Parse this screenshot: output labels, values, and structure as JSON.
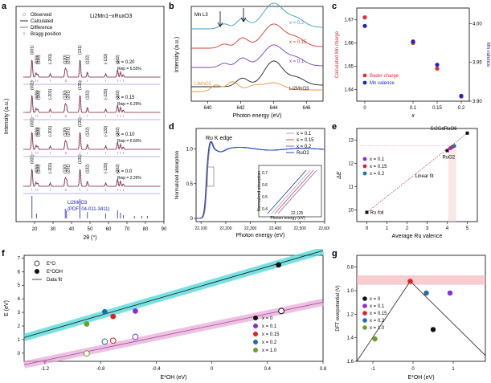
{
  "figure": {
    "panel_labels": [
      "a",
      "b",
      "c",
      "d",
      "e",
      "f",
      "g"
    ]
  },
  "chart_data": [
    {
      "panel": "a",
      "type": "line",
      "title": "Li2Mn1−xRuxO3",
      "xlabel": "2θ (°)",
      "ylabel": "Intensity (a.u.)",
      "xlim": [
        10,
        90
      ],
      "xticks": [
        20,
        30,
        40,
        50,
        60,
        70,
        80,
        90
      ],
      "legend": [
        "Observed",
        "Calculated",
        "Difference",
        "Bragg position"
      ],
      "colors": {
        "observed": "#f06fae",
        "calculated": "#3f2d2d",
        "difference": "#6b6bd6",
        "bragg": "#b07ad8"
      },
      "series": [
        {
          "x": "x = 0.20",
          "rwp": "Rwp = 6.55%",
          "peaks": [
            "(001)",
            "(020)",
            "(110)",
            "(-201)",
            "(130)",
            "(201)",
            "(131)",
            "(132)",
            "(-133)",
            "(202)"
          ]
        },
        {
          "x": "x = 0.15",
          "rwp": "Rwp = 6.29%",
          "peaks": [
            "(001)",
            "(020)",
            "(110)",
            "(-201)",
            "(130)",
            "(201)",
            "(131)",
            "(132)",
            "(-133)",
            "(202)"
          ]
        },
        {
          "x": "x = 0.10",
          "rwp": "Rwp = 6.60%",
          "peaks": [
            "(001)",
            "(020)",
            "(110)",
            "(-201)",
            "(130)",
            "(201)",
            "(131)",
            "(132)",
            "(-133)",
            "(202)"
          ]
        },
        {
          "x": "x = 0.0",
          "rwp": "Rwp = 2.26%",
          "peaks": [
            "(001)",
            "(020)",
            "(110)",
            "(-201)",
            "(130)",
            "(201)",
            "(131)",
            "(132)",
            "(-133)",
            "(202)"
          ]
        }
      ],
      "reference": {
        "name": "Li2MnO3",
        "pdf": "(PDF: 04-011-3411)"
      }
    },
    {
      "panel": "b",
      "type": "line",
      "title": "Mn L3",
      "xlabel": "Photon energy (eV)",
      "ylabel": "Intensity (a.u.)",
      "xlim": [
        639,
        647
      ],
      "xticks": [
        640,
        642,
        644,
        646
      ],
      "series": [
        {
          "name": "x = 0.2",
          "color": "#3b9cc4"
        },
        {
          "name": "x = 0.15",
          "color": "#d9342b"
        },
        {
          "name": "x = 0.1",
          "color": "#7b3ab0"
        },
        {
          "name": "Li2MnO3",
          "color": "#222222"
        },
        {
          "name": "LiMnO2",
          "color": "#e8943a"
        }
      ]
    },
    {
      "panel": "c",
      "type": "scatter",
      "xlabel": "x",
      "ylabel_left": "Calculated Mn charge",
      "ylabel_right": "Mn valence",
      "xlim": [
        0,
        0.2
      ],
      "xticks": [
        "0",
        "0.1",
        "0.15",
        "0.2"
      ],
      "ylim_left": [
        1.635,
        1.675
      ],
      "yticks_left": [
        "1.64",
        "1.65",
        "1.66",
        "1.67"
      ],
      "ylim_right": [
        3.9,
        4.02
      ],
      "yticks_right": [
        "3.90",
        "3.95",
        "4.00"
      ],
      "legend": [
        "Bader charge",
        "Mn valence"
      ],
      "series": [
        {
          "name": "Bader charge",
          "color": "#e03030",
          "x": [
            0,
            0.1,
            0.15,
            0.2
          ],
          "y": [
            1.671,
            1.66,
            1.649,
            1.637
          ]
        },
        {
          "name": "Mn valence",
          "color": "#2020d0",
          "x": [
            0,
            0.1,
            0.15,
            0.2
          ],
          "y": [
            4.0,
            3.98,
            3.95,
            3.91
          ]
        }
      ]
    },
    {
      "panel": "d",
      "type": "line",
      "title": "Ru K edge",
      "xlabel": "Photon energy (eV)",
      "ylabel": "Normalized absorption",
      "xlim": [
        22080,
        22600
      ],
      "xticks": [
        "22,100",
        "22,200",
        "22,300",
        "22,400",
        "22,500",
        "22,600"
      ],
      "yticks": [
        "0",
        "0.5",
        "1.0"
      ],
      "inset": {
        "xlabel": "Photon energy (eV)",
        "ylabel": "Normalized absorption",
        "xtick": "22,125",
        "yticks": [
          "0.4",
          "0.5",
          "0.6",
          "0.7"
        ]
      },
      "series": [
        {
          "name": "x = 0.1",
          "color": "#b9a0d8"
        },
        {
          "name": "x = 0.15",
          "color": "#c85a4a"
        },
        {
          "name": "x = 0.2",
          "color": "#8a6fbf"
        },
        {
          "name": "RuO2",
          "color": "#1f4fb0"
        }
      ]
    },
    {
      "panel": "e",
      "type": "scatter",
      "xlabel": "Average Ru valence",
      "ylabel": "ΔE",
      "xlim": [
        -0.5,
        5.5
      ],
      "xticks": [
        "0",
        "1",
        "2",
        "3",
        "4",
        "5"
      ],
      "ylim": [
        9.5,
        13.5
      ],
      "yticks": [
        "10",
        "11",
        "12",
        "13"
      ],
      "annotations": [
        "Sr2GdRuO6",
        "RuO2",
        "Linear fit",
        "Ru foil"
      ],
      "legend": [
        "x = 0.1",
        "x = 0.15",
        "x = 0.2"
      ],
      "series": [
        {
          "name": "references",
          "color": "#111111",
          "x": [
            0,
            4,
            5
          ],
          "y": [
            9.9,
            12.55,
            13.3
          ]
        },
        {
          "name": "x = 0.1",
          "color": "#8a2be2",
          "x": [
            4.15
          ],
          "y": [
            12.65
          ]
        },
        {
          "name": "x = 0.15",
          "color": "#e02020",
          "x": [
            4.25
          ],
          "y": [
            12.7
          ]
        },
        {
          "name": "x = 0.2",
          "color": "#1e6fa8",
          "x": [
            4.35
          ],
          "y": [
            12.75
          ]
        }
      ]
    },
    {
      "panel": "f",
      "type": "scatter",
      "xlabel": "E*OH (eV)",
      "ylabel": "E (eV)",
      "xlim": [
        -1.35,
        0.8
      ],
      "xticks": [
        "-1.2",
        "-0.8",
        "-0.4",
        "0",
        "0.4",
        "0.8"
      ],
      "ylim": [
        -0.6,
        7.2
      ],
      "yticks": [
        "0",
        "1",
        "2",
        "3",
        "4",
        "5",
        "6",
        "7"
      ],
      "legend_top": [
        "E*O",
        "E*OOH",
        "Data fit"
      ],
      "legend_bottom": [
        "x = 0",
        "x = 0.1",
        "x = 0.15",
        "x = 0.2",
        "x = 1.0"
      ],
      "series": [
        {
          "name": "E*OOH",
          "points": [
            {
              "x": 0.48,
              "y": 6.5,
              "color": "#111111"
            },
            {
              "x": -0.55,
              "y": 3.1,
              "color": "#8a2be2"
            },
            {
              "x": -0.71,
              "y": 2.7,
              "color": "#e02020"
            },
            {
              "x": -0.77,
              "y": 3.05,
              "color": "#1e6fa8"
            },
            {
              "x": -0.9,
              "y": 2.15,
              "color": "#6aa02e"
            }
          ]
        },
        {
          "name": "E*O",
          "points": [
            {
              "x": 0.5,
              "y": 3.1,
              "color": "#111111"
            },
            {
              "x": -0.55,
              "y": 1.2,
              "color": "#8a2be2"
            },
            {
              "x": -0.71,
              "y": 0.92,
              "color": "#e02020"
            },
            {
              "x": -0.77,
              "y": 0.85,
              "color": "#1e6fa8"
            },
            {
              "x": -0.9,
              "y": -0.02,
              "color": "#6aa02e"
            }
          ]
        }
      ]
    },
    {
      "panel": "g",
      "type": "scatter",
      "xlabel": "E*OH (eV)",
      "ylabel": "DFT overpotential (V)",
      "xlim": [
        -1.4,
        1.8
      ],
      "xticks": [
        "-1",
        "0",
        "1"
      ],
      "ylim": [
        1.6,
        0.7
      ],
      "yticks": [
        "0.8",
        "1.0",
        "1.2",
        "1.4",
        "1.6"
      ],
      "legend": [
        "x = 0",
        "x = 0.1",
        "x = 0.15",
        "x = 0.2",
        "x = 1.0"
      ],
      "series": [
        {
          "name": "x = 0",
          "color": "#111111",
          "x": [
            0.5
          ],
          "y": [
            1.33
          ]
        },
        {
          "name": "x = 0.1",
          "color": "#8a2be2",
          "x": [
            0.92
          ],
          "y": [
            1.02
          ]
        },
        {
          "name": "x = 0.15",
          "color": "#e02020",
          "x": [
            -0.07
          ],
          "y": [
            0.92
          ]
        },
        {
          "name": "x = 0.2",
          "color": "#1e6fa8",
          "x": [
            0.33
          ],
          "y": [
            1.02
          ]
        },
        {
          "name": "x = 1.0",
          "color": "#6aa02e",
          "x": [
            -0.95
          ],
          "y": [
            1.41
          ]
        }
      ]
    }
  ]
}
